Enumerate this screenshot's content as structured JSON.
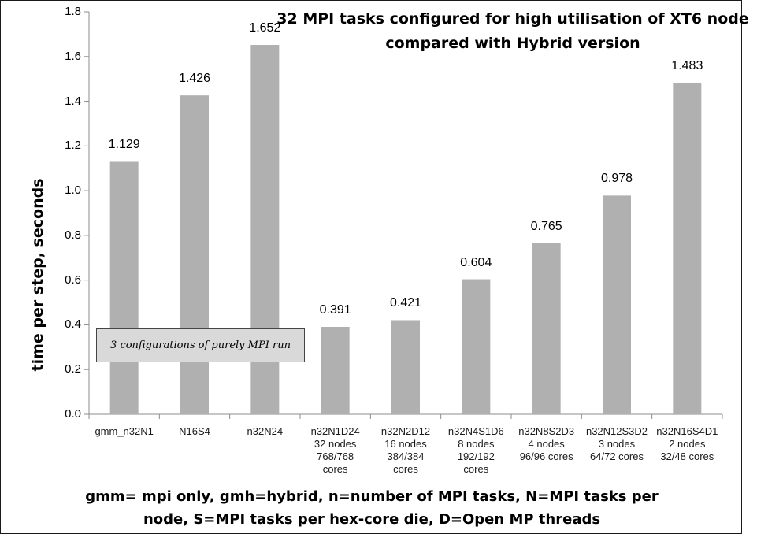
{
  "chart_data": {
    "type": "bar",
    "title_lines": [
      "32 MPI tasks configured for high utilisation of XT6 node",
      "compared with Hybrid version"
    ],
    "ylabel": "time per step, seconds",
    "ylim": [
      0,
      1.8
    ],
    "yticks": [
      "0.0",
      "0.2",
      "0.4",
      "0.6",
      "0.8",
      "1.0",
      "1.2",
      "1.4",
      "1.6",
      "1.8"
    ],
    "categories": [
      [
        "gmm_n32N1"
      ],
      [
        "N16S4"
      ],
      [
        "n32N24"
      ],
      [
        "n32N1D24",
        "32 nodes",
        "768/768",
        "cores"
      ],
      [
        "n32N2D12",
        "16 nodes",
        "384/384",
        "cores"
      ],
      [
        "n32N4S1D6",
        "8 nodes",
        "192/192",
        "cores"
      ],
      [
        "n32N8S2D3",
        "4 nodes",
        "96/96 cores"
      ],
      [
        "n32N12S3D2",
        "3 nodes",
        "64/72 cores"
      ],
      [
        "n32N16S4D1",
        "2 nodes",
        "32/48 cores"
      ]
    ],
    "values": [
      1.129,
      1.426,
      1.652,
      0.391,
      0.421,
      0.604,
      0.765,
      0.978,
      1.483
    ],
    "value_labels": [
      "1.129",
      "1.426",
      "1.652",
      "0.391",
      "0.421",
      "0.604",
      "0.765",
      "0.978",
      "1.483"
    ],
    "bar_color": "#b0b0b0",
    "grid": false,
    "legend": "none",
    "annotation": "3 configurations of purely MPI run",
    "footnote_lines": [
      "gmm= mpi only, gmh=hybrid, n=number of MPI tasks, N=MPI tasks per",
      "node, S=MPI tasks per hex-core die, D=Open MP threads"
    ]
  }
}
